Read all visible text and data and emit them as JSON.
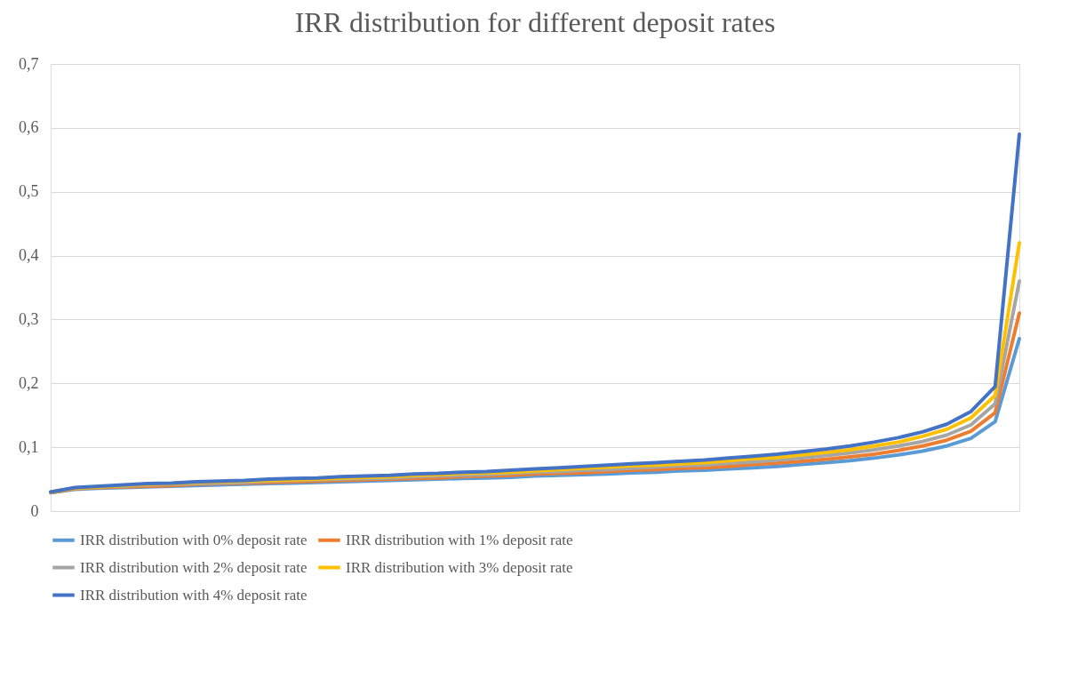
{
  "chart_data": {
    "type": "line",
    "title": "IRR distribution for different deposit rates",
    "categories": [
      null,
      null,
      null,
      null,
      null,
      null,
      null,
      null,
      null,
      null,
      null,
      null,
      null,
      null,
      null,
      null,
      null,
      null,
      null,
      null,
      null,
      null,
      null,
      null,
      null,
      null,
      null,
      null,
      null,
      null,
      null,
      null,
      null,
      null,
      null,
      null,
      null,
      null,
      null,
      null,
      null
    ],
    "series": [
      {
        "name": "IRR distribution with 0% deposit rate",
        "color": "#5b9bd5",
        "values": [
          0.029,
          0.034,
          0.036,
          0.037,
          0.038,
          0.039,
          0.04,
          0.041,
          0.042,
          0.043,
          0.044,
          0.045,
          0.046,
          0.047,
          0.048,
          0.049,
          0.05,
          0.051,
          0.052,
          0.053,
          0.055,
          0.056,
          0.057,
          0.058,
          0.06,
          0.061,
          0.063,
          0.064,
          0.066,
          0.068,
          0.07,
          0.073,
          0.076,
          0.079,
          0.083,
          0.088,
          0.094,
          0.102,
          0.114,
          0.14,
          0.27
        ]
      },
      {
        "name": "IRR distribution with 1% deposit rate",
        "color": "#ed7d31",
        "values": [
          0.029,
          0.035,
          0.037,
          0.038,
          0.039,
          0.04,
          0.042,
          0.043,
          0.044,
          0.045,
          0.046,
          0.047,
          0.048,
          0.049,
          0.05,
          0.051,
          0.052,
          0.054,
          0.055,
          0.056,
          0.058,
          0.059,
          0.06,
          0.062,
          0.064,
          0.065,
          0.067,
          0.068,
          0.07,
          0.073,
          0.075,
          0.078,
          0.081,
          0.085,
          0.089,
          0.095,
          0.102,
          0.111,
          0.125,
          0.154,
          0.31
        ]
      },
      {
        "name": "IRR distribution with 2% deposit rate",
        "color": "#a5a5a5",
        "values": [
          0.03,
          0.036,
          0.038,
          0.039,
          0.041,
          0.042,
          0.043,
          0.044,
          0.045,
          0.047,
          0.048,
          0.049,
          0.05,
          0.051,
          0.052,
          0.054,
          0.055,
          0.056,
          0.057,
          0.059,
          0.061,
          0.062,
          0.064,
          0.065,
          0.067,
          0.069,
          0.071,
          0.072,
          0.075,
          0.077,
          0.08,
          0.083,
          0.087,
          0.091,
          0.096,
          0.102,
          0.109,
          0.119,
          0.135,
          0.168,
          0.36
        ]
      },
      {
        "name": "IRR distribution with 3% deposit rate",
        "color": "#ffc000",
        "values": [
          0.03,
          0.036,
          0.038,
          0.04,
          0.042,
          0.043,
          0.045,
          0.046,
          0.047,
          0.048,
          0.049,
          0.05,
          0.052,
          0.053,
          0.054,
          0.056,
          0.057,
          0.059,
          0.06,
          0.061,
          0.063,
          0.065,
          0.067,
          0.069,
          0.071,
          0.072,
          0.074,
          0.076,
          0.079,
          0.082,
          0.084,
          0.088,
          0.092,
          0.096,
          0.102,
          0.108,
          0.117,
          0.128,
          0.146,
          0.181,
          0.42
        ]
      },
      {
        "name": "IRR distribution with 4% deposit rate",
        "color": "#4472c4",
        "values": [
          0.03,
          0.037,
          0.039,
          0.041,
          0.043,
          0.044,
          0.046,
          0.047,
          0.048,
          0.05,
          0.051,
          0.052,
          0.054,
          0.055,
          0.056,
          0.058,
          0.059,
          0.061,
          0.062,
          0.064,
          0.066,
          0.068,
          0.07,
          0.072,
          0.074,
          0.076,
          0.078,
          0.08,
          0.083,
          0.086,
          0.089,
          0.093,
          0.097,
          0.102,
          0.108,
          0.115,
          0.124,
          0.136,
          0.156,
          0.195,
          0.59
        ]
      }
    ],
    "ylim": [
      0,
      0.7
    ],
    "yticks": [
      {
        "value": 0,
        "label": "0"
      },
      {
        "value": 0.1,
        "label": "0,1"
      },
      {
        "value": 0.2,
        "label": "0,2"
      },
      {
        "value": 0.3,
        "label": "0,3"
      },
      {
        "value": 0.4,
        "label": "0,4"
      },
      {
        "value": 0.5,
        "label": "0,5"
      },
      {
        "value": 0.6,
        "label": "0,6"
      },
      {
        "value": 0.7,
        "label": "0,7"
      }
    ],
    "grid": "y",
    "legend": "bottom",
    "tick_labels": "y",
    "marker": "none",
    "line_style": "solid"
  }
}
